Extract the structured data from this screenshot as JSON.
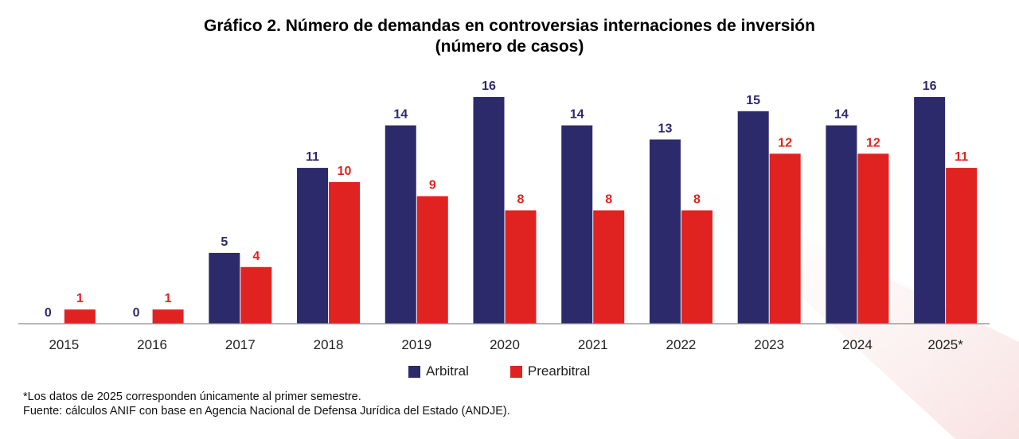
{
  "chart_data": {
    "type": "bar",
    "title": "Gráfico 2. Número de demandas en controversias internaciones de inversión",
    "subtitle": "(número de casos)",
    "categories": [
      "2015",
      "2016",
      "2017",
      "2018",
      "2019",
      "2020",
      "2021",
      "2022",
      "2023",
      "2024",
      "2025*"
    ],
    "series": [
      {
        "name": "Arbitral",
        "color": "#2d2a6b",
        "values": [
          0,
          0,
          5,
          11,
          14,
          16,
          14,
          13,
          15,
          14,
          16
        ]
      },
      {
        "name": "Prearbitral",
        "color": "#e02320",
        "values": [
          1,
          1,
          4,
          10,
          9,
          8,
          8,
          8,
          12,
          12,
          11
        ]
      }
    ],
    "ylim": [
      0,
      16
    ],
    "grid": false,
    "legend": "bottom-center",
    "xlabel": "",
    "ylabel": ""
  },
  "notes": {
    "footnote": "*Los datos de 2025 corresponden únicamente al primer semestre.",
    "source": "Fuente: cálculos ANIF con base en Agencia Nacional de Defensa Jurídica del Estado (ANDJE)."
  }
}
